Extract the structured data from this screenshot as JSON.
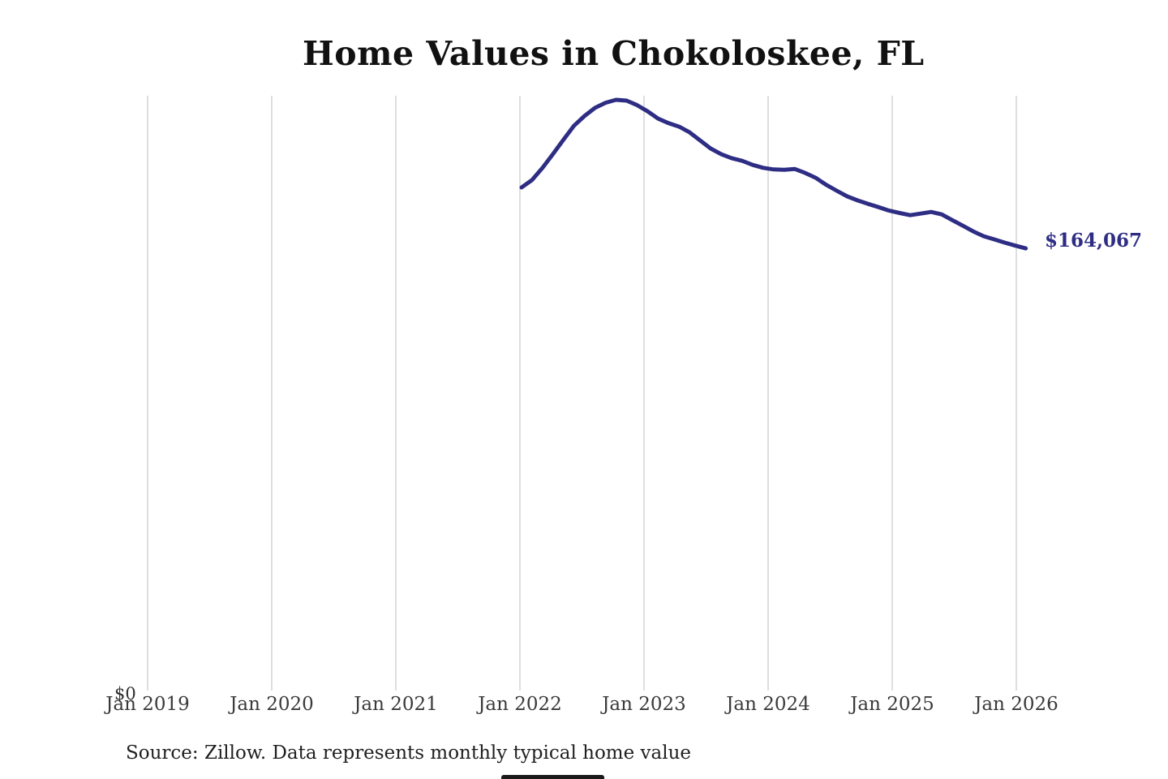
{
  "page": {
    "title": "Home Values in Chokoloskee, FL",
    "current_value_label": "$164,067",
    "y_zero_label": "$0",
    "source_note": "Source: Zillow. Data represents monthly typical home value"
  },
  "colors": {
    "line": "#2e2d84",
    "value_label": "#2e2d84",
    "gridline": "#cccccc",
    "title_text": "#111111",
    "axis_text": "#3a3a3a",
    "source_text": "#1f1f1f"
  },
  "chart_data": {
    "type": "line",
    "title": "Home Values in Chokoloskee, FL",
    "xlabel": "",
    "ylabel": "",
    "x_tick_labels": [
      "Jan 2019",
      "Jan 2020",
      "Jan 2021",
      "Jan 2022",
      "Jan 2023",
      "Jan 2024",
      "Jan 2025",
      "Jan 2026"
    ],
    "y_tick_labels": [
      "$0"
    ],
    "ylim": [
      0,
      220800
    ],
    "grid": "vertical-only",
    "legend": "none",
    "end_annotation": "$164,067",
    "source": "Source: Zillow. Data represents monthly typical home value",
    "series": [
      {
        "name": "Monthly typical home value",
        "x": [
          "Jan 2022",
          "Feb 2022",
          "Mar 2022",
          "Apr 2022",
          "May 2022",
          "Jun 2022",
          "Jul 2022",
          "Aug 2022",
          "Sep 2022",
          "Oct 2022",
          "Nov 2022",
          "Dec 2022",
          "Jan 2023",
          "Feb 2023",
          "Mar 2023",
          "Apr 2023",
          "May 2023",
          "Jun 2023",
          "Jul 2023",
          "Aug 2023",
          "Sep 2023",
          "Oct 2023",
          "Nov 2023",
          "Dec 2023",
          "Jan 2024",
          "Feb 2024",
          "Mar 2024",
          "Apr 2024",
          "May 2024",
          "Jun 2024",
          "Jul 2024",
          "Aug 2024",
          "Sep 2024",
          "Oct 2024",
          "Nov 2024",
          "Dec 2024",
          "Jan 2025",
          "Feb 2025",
          "Mar 2025",
          "Apr 2025",
          "May 2025",
          "Jun 2025",
          "Jul 2025",
          "Aug 2025",
          "Sep 2025",
          "Oct 2025",
          "Nov 2025",
          "Dec 2025",
          "Jan 2026"
        ],
        "values": [
          186700,
          189500,
          194000,
          199200,
          204500,
          209700,
          213300,
          216300,
          218200,
          219300,
          219000,
          217300,
          215000,
          212300,
          210600,
          209300,
          207200,
          204200,
          201200,
          199100,
          197600,
          196600,
          195100,
          194000,
          193400,
          193300,
          193600,
          192100,
          190300,
          187700,
          185500,
          183400,
          181900,
          180600,
          179400,
          178100,
          177200,
          176400,
          177000,
          177600,
          176700,
          174600,
          172500,
          170400,
          168600,
          167400,
          166200,
          165100,
          164067
        ]
      }
    ]
  }
}
